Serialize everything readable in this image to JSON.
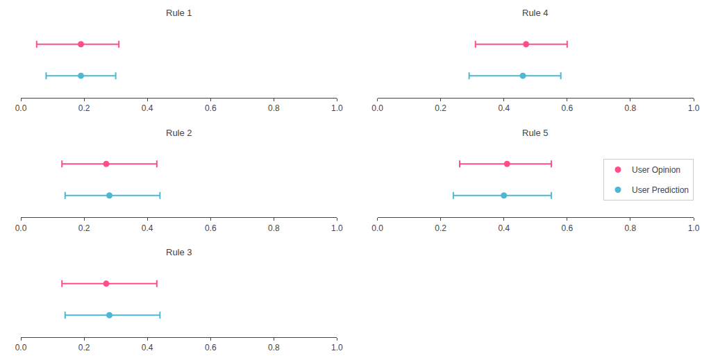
{
  "chart_data": [
    {
      "type": "errorbar",
      "title": "Rule 1",
      "series": [
        {
          "name": "User Opinion",
          "color": "#FF4D8D",
          "values": [
            0.19
          ],
          "low": [
            0.05
          ],
          "high": [
            0.31
          ]
        },
        {
          "name": "User Prediction",
          "color": "#4DB8D4",
          "values": [
            0.19
          ],
          "low": [
            0.08
          ],
          "high": [
            0.3
          ]
        }
      ],
      "xlim": [
        0.0,
        1.0
      ],
      "xticks": [
        {
          "value": 0.0,
          "label": "0.0"
        },
        0.2,
        0.4,
        0.6,
        0.8,
        {
          "value": 1.0,
          "label": "1.0"
        }
      ],
      "grid": false,
      "tick_labels": "x"
    },
    {
      "type": "errorbar",
      "title": "Rule 2",
      "series": [
        {
          "name": "User Opinion",
          "color": "#FF4D8D",
          "values": [
            0.27
          ],
          "low": [
            0.13
          ],
          "high": [
            0.43
          ]
        },
        {
          "name": "User Prediction",
          "color": "#4DB8D4",
          "values": [
            0.28
          ],
          "low": [
            0.14
          ],
          "high": [
            0.44
          ]
        }
      ],
      "xlim": [
        0.0,
        1.0
      ],
      "xticks": [
        {
          "value": 0.0,
          "label": "0.0"
        },
        0.2,
        0.4,
        0.6,
        0.8,
        {
          "value": 1.0,
          "label": "1.0"
        }
      ],
      "grid": false,
      "tick_labels": "x"
    },
    {
      "type": "errorbar",
      "title": "Rule 3",
      "series": [
        {
          "name": "User Opinion",
          "color": "#FF4D8D",
          "values": [
            0.27
          ],
          "low": [
            0.13
          ],
          "high": [
            0.43
          ]
        },
        {
          "name": "User Prediction",
          "color": "#4DB8D4",
          "values": [
            0.28
          ],
          "low": [
            0.14
          ],
          "high": [
            0.44
          ]
        }
      ],
      "xlim": [
        0.0,
        1.0
      ],
      "xticks": [
        {
          "value": 0.0,
          "label": "0.0"
        },
        0.2,
        0.4,
        0.6,
        0.8,
        {
          "value": 1.0,
          "label": "1.0"
        }
      ],
      "grid": false,
      "tick_labels": "x"
    },
    {
      "type": "errorbar",
      "title": "Rule 4",
      "series": [
        {
          "name": "User Opinion",
          "color": "#FF4D8D",
          "values": [
            0.47
          ],
          "low": [
            0.31
          ],
          "high": [
            0.6
          ]
        },
        {
          "name": "User Prediction",
          "color": "#4DB8D4",
          "values": [
            0.46
          ],
          "low": [
            0.29
          ],
          "high": [
            0.58
          ]
        }
      ],
      "xlim": [
        0.0,
        1.0
      ],
      "xticks": [
        {
          "value": 0.0,
          "label": "0.0"
        },
        0.2,
        0.4,
        0.6,
        0.8,
        {
          "value": 1.0,
          "label": "1.0"
        }
      ],
      "grid": false,
      "tick_labels": "x"
    },
    {
      "type": "errorbar",
      "title": "Rule 5",
      "series": [
        {
          "name": "User Opinion",
          "color": "#FF4D8D",
          "values": [
            0.41
          ],
          "low": [
            0.26
          ],
          "high": [
            0.55
          ]
        },
        {
          "name": "User Prediction",
          "color": "#4DB8D4",
          "values": [
            0.4
          ],
          "low": [
            0.24
          ],
          "high": [
            0.55
          ]
        }
      ],
      "xlim": [
        0.0,
        1.0
      ],
      "xticks": [
        {
          "value": 0.0,
          "label": "0.0"
        },
        0.2,
        0.4,
        0.6,
        0.8,
        {
          "value": 1.0,
          "label": "1.0"
        }
      ],
      "grid": false,
      "tick_labels": "x",
      "legend": "right"
    }
  ]
}
